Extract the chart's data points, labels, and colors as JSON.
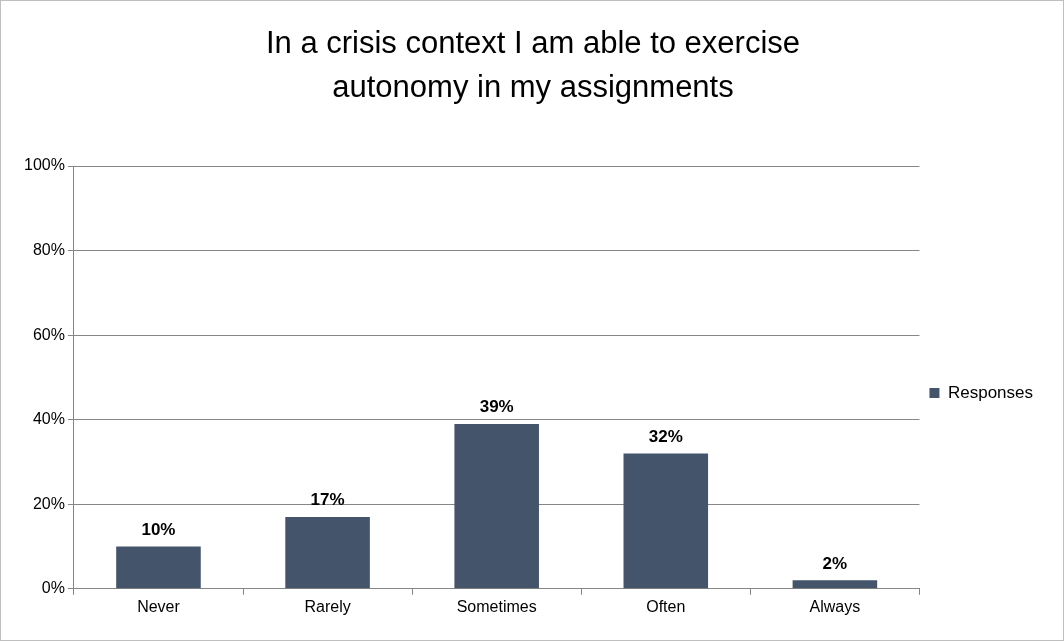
{
  "chart_data": {
    "type": "bar",
    "title": "In a crisis context I am able to exercise autonomy in my assignments",
    "categories": [
      "Never",
      "Rarely",
      "Sometimes",
      "Often",
      "Always"
    ],
    "series": [
      {
        "name": "Responses",
        "color": "#44546a",
        "values": [
          10,
          17,
          39,
          32,
          2
        ],
        "value_labels": [
          "10%",
          "17%",
          "39%",
          "32%",
          "2%"
        ]
      }
    ],
    "ylim": [
      0,
      100
    ],
    "yticks": [
      {
        "value": 0,
        "label": "0%"
      },
      {
        "value": 20,
        "label": "20%"
      },
      {
        "value": 40,
        "label": "40%"
      },
      {
        "value": 60,
        "label": "60%"
      },
      {
        "value": 80,
        "label": "80%"
      },
      {
        "value": 100,
        "label": "100%"
      }
    ],
    "grid": "y",
    "legend": "right"
  }
}
